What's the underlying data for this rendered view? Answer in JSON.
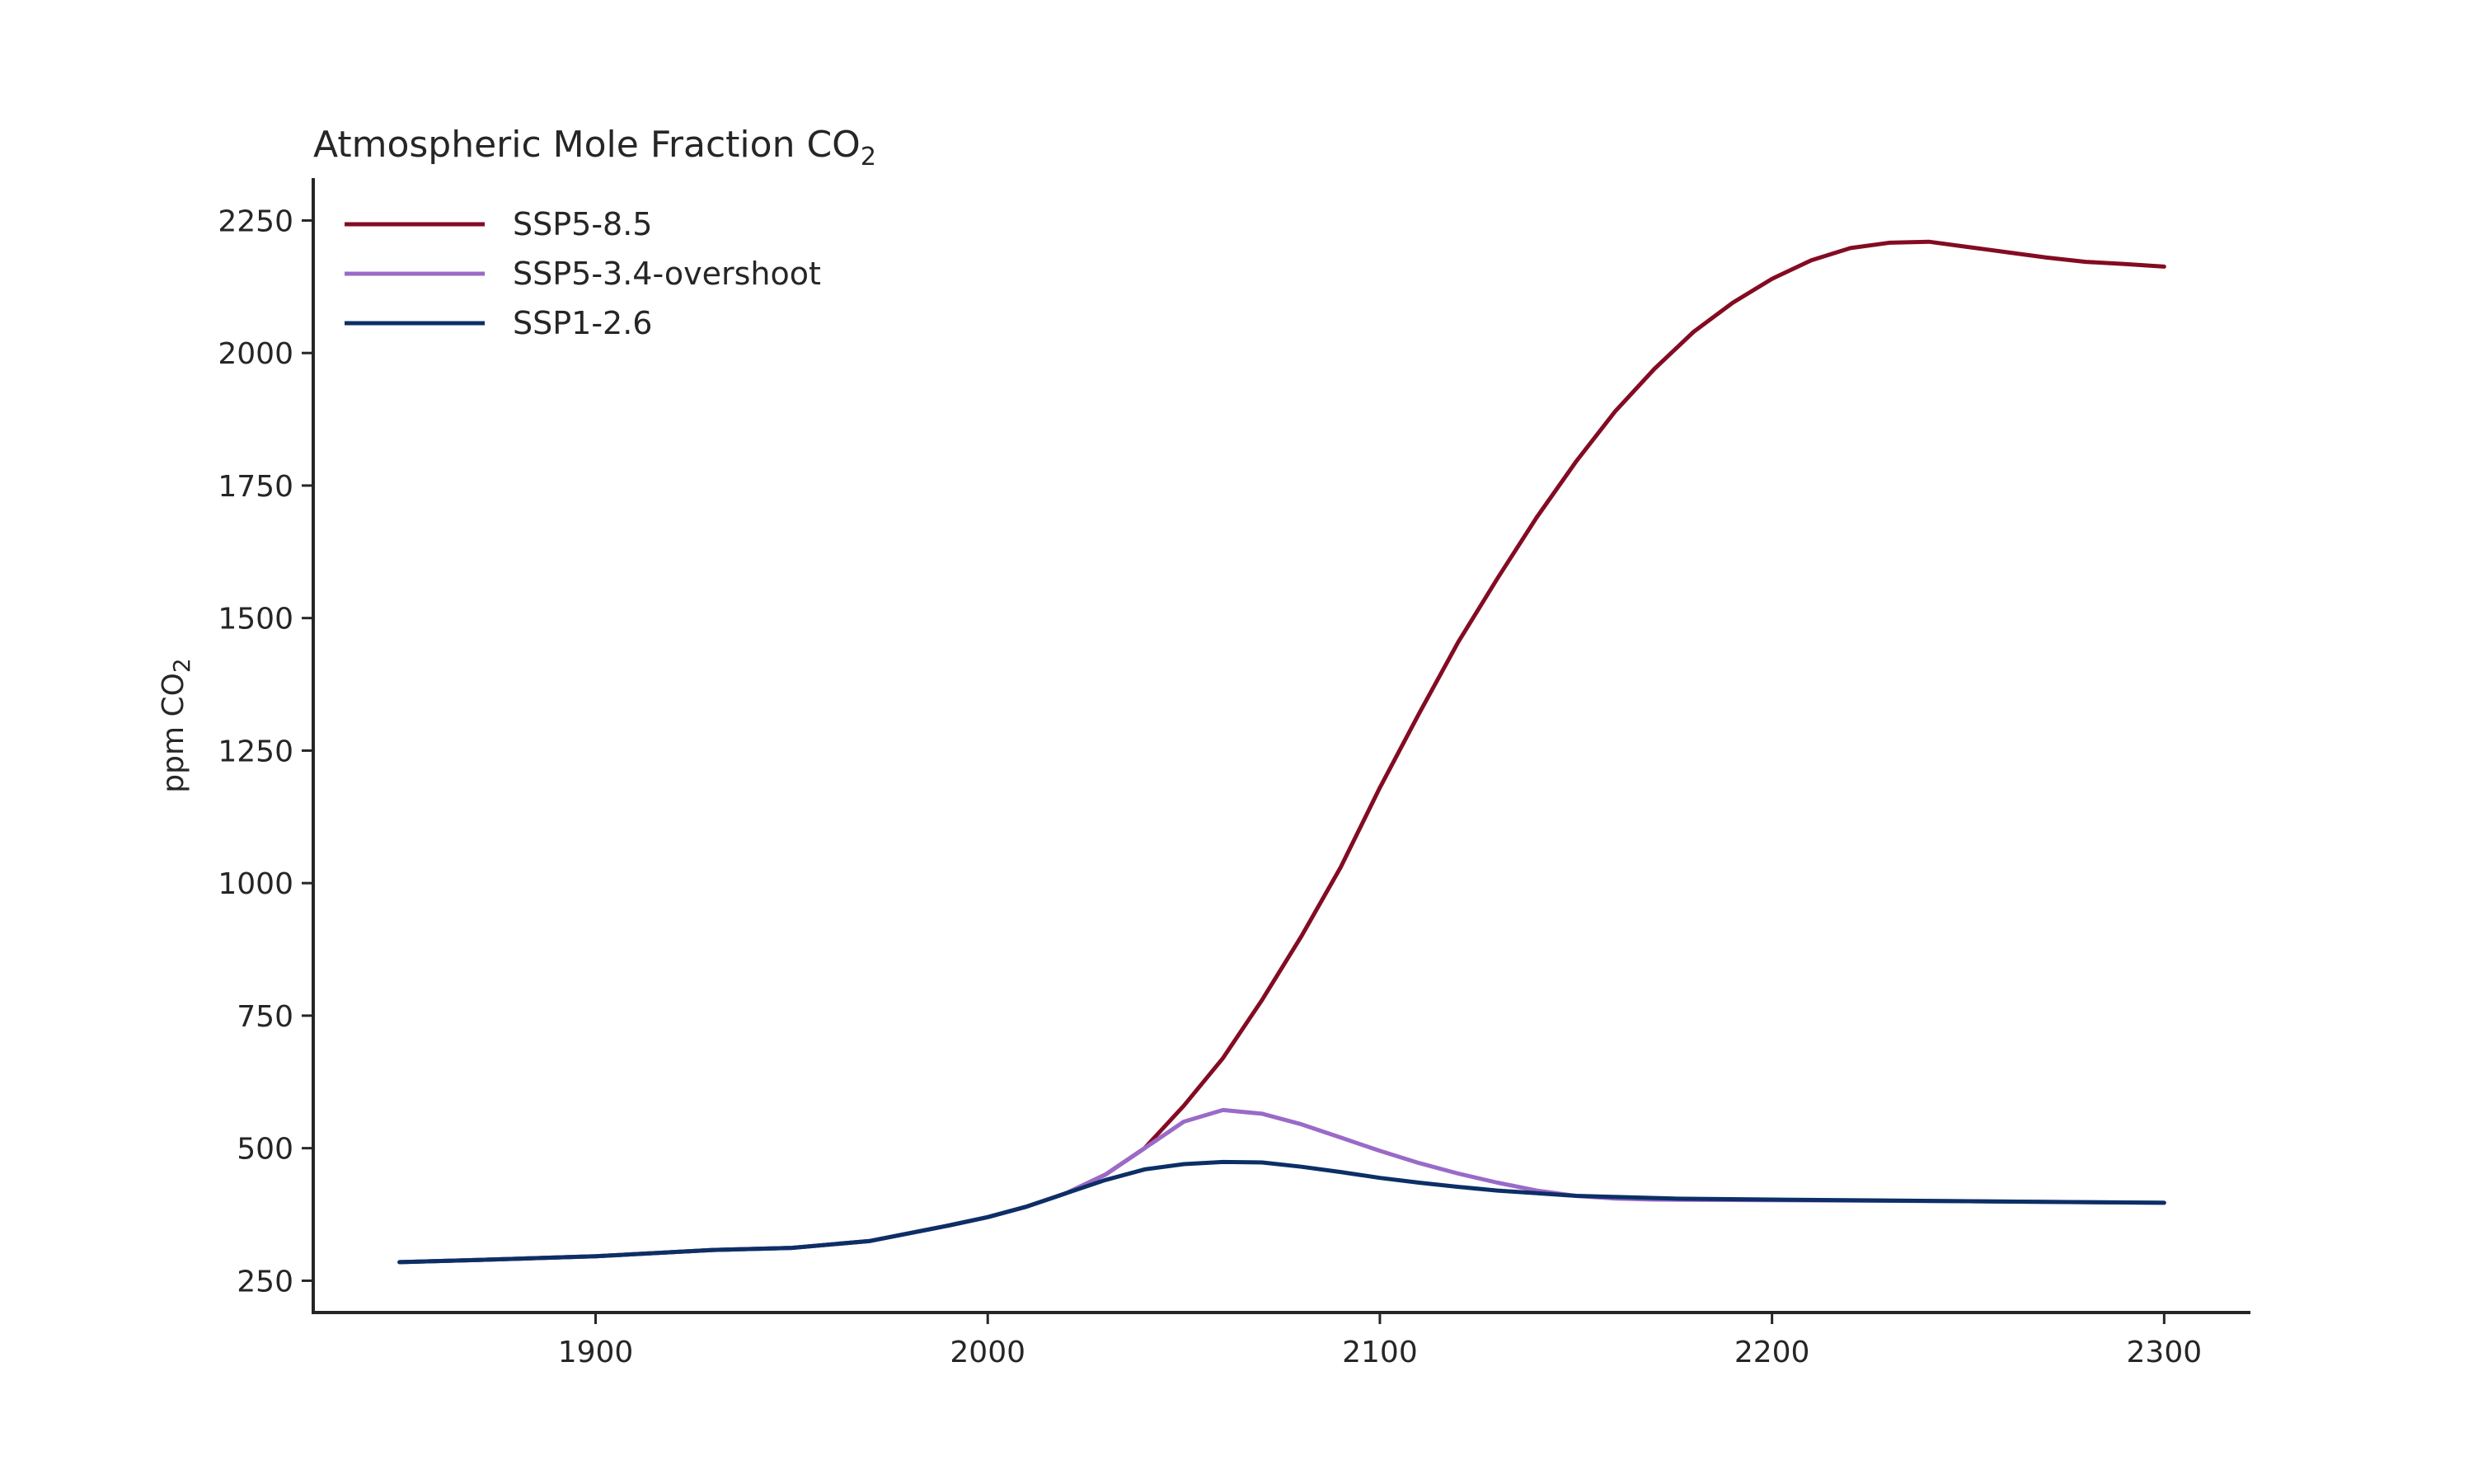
{
  "chart_data": {
    "type": "line",
    "title_main": "Atmospheric Mole Fraction CO",
    "title_sub": "2",
    "ylabel_main": "ppm CO",
    "ylabel_sub": "2",
    "xlabel": "",
    "xlim": [
      1828,
      2322
    ],
    "ylim": [
      190,
      2330
    ],
    "xticks": [
      1900,
      2000,
      2100,
      2200,
      2300
    ],
    "yticks": [
      250,
      500,
      750,
      1000,
      1250,
      1500,
      1750,
      2000,
      2250
    ],
    "grid": false,
    "legend": "top-left",
    "series": [
      {
        "name": "SSP5-8.5",
        "color": "#830b22",
        "x": [
          1850,
          1870,
          1900,
          1930,
          1950,
          1970,
          1990,
          2000,
          2010,
          2020,
          2030,
          2040,
          2050,
          2060,
          2070,
          2080,
          2090,
          2100,
          2110,
          2120,
          2130,
          2140,
          2150,
          2160,
          2170,
          2180,
          2190,
          2200,
          2210,
          2220,
          2230,
          2240,
          2250,
          2260,
          2270,
          2280,
          2290,
          2300
        ],
        "y": [
          285,
          289,
          296,
          308,
          312,
          325,
          354,
          370,
          390,
          415,
          450,
          500,
          580,
          670,
          780,
          900,
          1030,
          1180,
          1320,
          1455,
          1575,
          1690,
          1795,
          1890,
          1970,
          2040,
          2095,
          2140,
          2175,
          2198,
          2208,
          2210,
          2200,
          2190,
          2180,
          2172,
          2168,
          2163
        ]
      },
      {
        "name": "SSP5-3.4-overshoot",
        "color": "#9a6ac8",
        "x": [
          1850,
          1870,
          1900,
          1930,
          1950,
          1970,
          1990,
          2000,
          2010,
          2020,
          2030,
          2040,
          2050,
          2060,
          2070,
          2080,
          2090,
          2100,
          2110,
          2120,
          2130,
          2140,
          2150,
          2160,
          2170,
          2200,
          2250,
          2300
        ],
        "y": [
          285,
          289,
          296,
          308,
          312,
          325,
          354,
          370,
          390,
          415,
          450,
          500,
          550,
          572,
          565,
          545,
          520,
          495,
          472,
          452,
          435,
          420,
          410,
          405,
          403,
          402,
          400,
          397
        ]
      },
      {
        "name": "SSP1-2.6",
        "color": "#0b2f66",
        "x": [
          1850,
          1870,
          1900,
          1930,
          1950,
          1970,
          1990,
          2000,
          2010,
          2020,
          2030,
          2040,
          2050,
          2060,
          2070,
          2080,
          2090,
          2100,
          2110,
          2120,
          2130,
          2140,
          2150,
          2175,
          2200,
          2250,
          2300
        ],
        "y": [
          285,
          289,
          296,
          308,
          312,
          325,
          354,
          370,
          390,
          415,
          440,
          460,
          470,
          474,
          473,
          465,
          455,
          444,
          435,
          427,
          420,
          415,
          410,
          405,
          403,
          400,
          397
        ]
      }
    ]
  }
}
